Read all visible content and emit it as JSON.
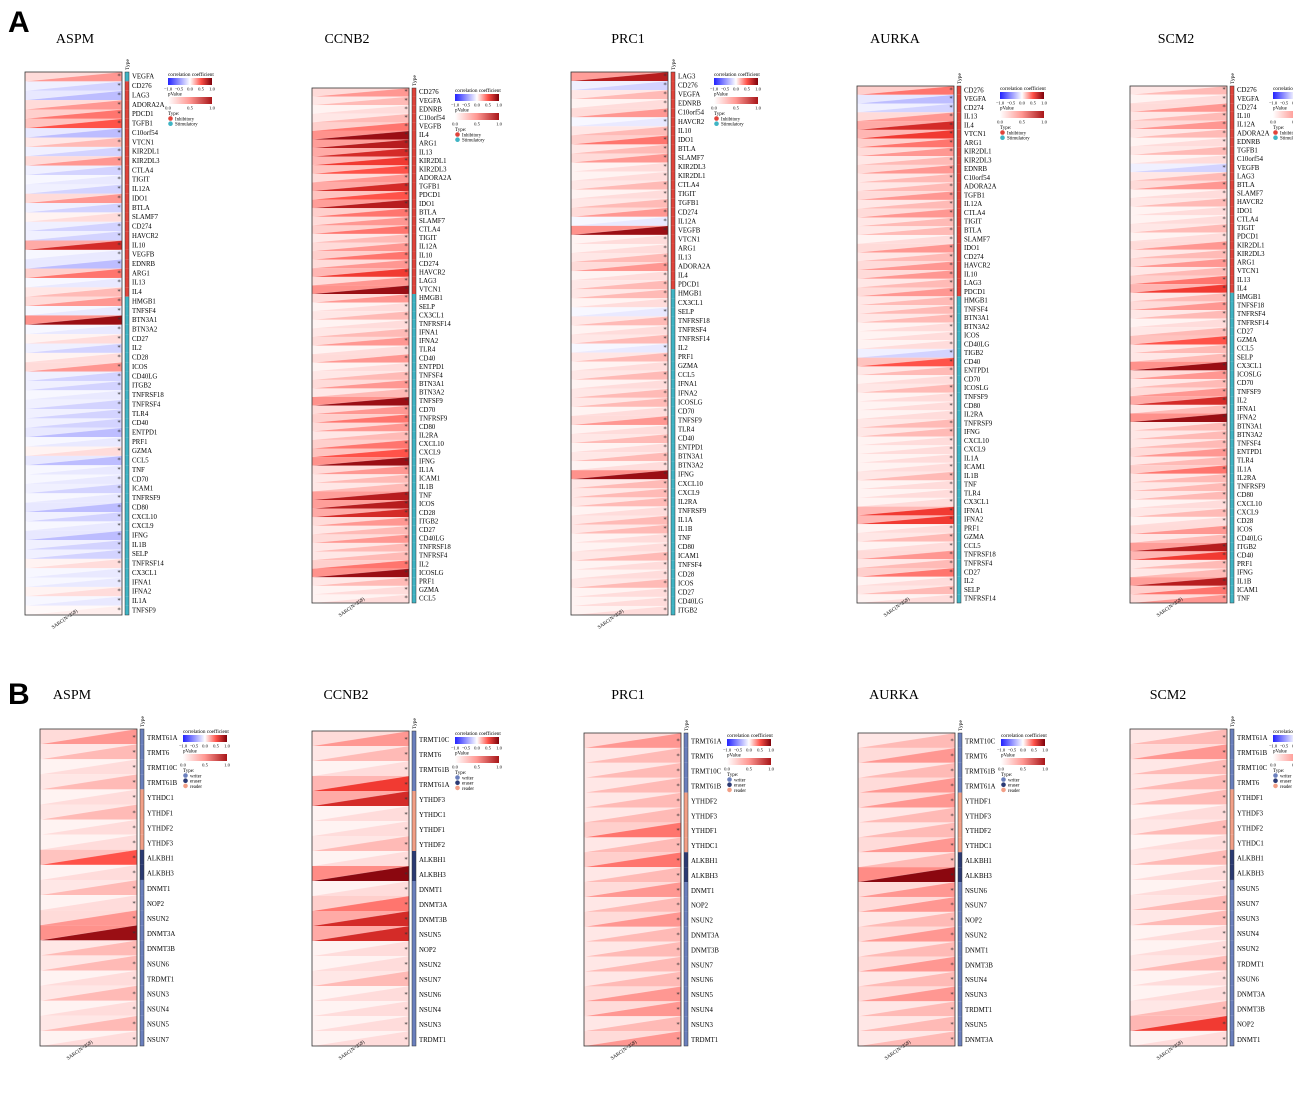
{
  "figure": {
    "label_a": "A",
    "label_b": "B"
  },
  "legend": {
    "corr_title": "correlation coefficient",
    "corr_ticks": [
      "−1.0",
      "−0.5",
      "0.0",
      "0.5",
      "1.0"
    ],
    "p_title": "pValue",
    "p_ticks": [
      "0.0",
      "0.5",
      "1.0"
    ],
    "type_title": "Type:",
    "types_a": [
      "Inhibitory",
      "Stimulatory"
    ],
    "types_b": [
      "writer",
      "eraser",
      "reader"
    ],
    "type_colors_a": {
      "Inhibitory": "#e0433a",
      "Stimulatory": "#3fb4c4"
    },
    "type_colors_b": {
      "writer": "#6a7fbd",
      "eraser": "#2b3a73",
      "reader": "#f29f86"
    }
  },
  "sample_label": "SARC(N=258)",
  "type_header": "Type",
  "chart_data": [
    {
      "type": "heatmap",
      "title": "ASPM",
      "section": "A",
      "genes": [
        "VEGFA",
        "CD276",
        "LAG3",
        "ADORA2A",
        "PDCD1",
        "TGFB1",
        "C10orf54",
        "VTCN1",
        "KIR2DL1",
        "KIR2DL3",
        "CTLA4",
        "TIGIT",
        "IL12A",
        "IDO1",
        "BTLA",
        "SLAMF7",
        "CD274",
        "HAVCR2",
        "IL10",
        "VEGFB",
        "EDNRB",
        "ARG1",
        "IL13",
        "IL4",
        "HMGB1",
        "TNFSF4",
        "BTN3A1",
        "BTN3A2",
        "CD27",
        "IL2",
        "CD28",
        "ICOS",
        "CD40LG",
        "ITGB2",
        "TNFRSF18",
        "TNFRSF4",
        "TLR4",
        "CD40",
        "ENTPD1",
        "PRF1",
        "GZMA",
        "CCL5",
        "TNF",
        "CD70",
        "ICAM1",
        "TNFRSF9",
        "CD80",
        "CXCL10",
        "CXCL9",
        "IFNG",
        "IL1B",
        "SELP",
        "TNFRSF14",
        "CX3CL1",
        "IFNA1",
        "IFNA2",
        "IL1A",
        "TNFSF9"
      ],
      "types": [
        "S",
        "I",
        "I",
        "I",
        "I",
        "I",
        "I",
        "I",
        "I",
        "I",
        "I",
        "I",
        "I",
        "I",
        "I",
        "I",
        "I",
        "I",
        "I",
        "I",
        "I",
        "I",
        "I",
        "I",
        "S",
        "S",
        "S",
        "S",
        "S",
        "S",
        "S",
        "S",
        "S",
        "S",
        "S",
        "S",
        "S",
        "S",
        "S",
        "S",
        "S",
        "S",
        "S",
        "S",
        "S",
        "S",
        "S",
        "S",
        "S",
        "S",
        "S",
        "S",
        "S",
        "S",
        "S",
        "S",
        "S",
        "S"
      ],
      "values": [
        0.3,
        -0.2,
        -0.3,
        0.3,
        0.4,
        0.5,
        -0.3,
        0.2,
        -0.2,
        0.3,
        -0.2,
        -0.1,
        -0.2,
        0.3,
        -0.2,
        0.1,
        -0.2,
        -0.2,
        0.7,
        -0.1,
        -0.3,
        0.4,
        -0.1,
        0.2,
        0.3,
        -0.1,
        0.9,
        -0.1,
        0.1,
        -0.2,
        0.1,
        0.3,
        -0.2,
        -0.2,
        -0.1,
        -0.2,
        -0.2,
        -0.2,
        -0.3,
        -0.1,
        0.1,
        -0.3,
        -0.1,
        -0.1,
        -0.2,
        -0.1,
        -0.3,
        -0.2,
        -0.1,
        -0.3,
        -0.2,
        -0.2,
        0.1,
        -0.1,
        -0.1,
        0.1,
        -0.1,
        0.05
      ]
    },
    {
      "type": "heatmap",
      "title": "CCNB2",
      "section": "A",
      "genes": [
        "CD276",
        "VEGFA",
        "EDNRB",
        "C10orf54",
        "VEGFB",
        "IL4",
        "ARG1",
        "IL13",
        "KIR2DL1",
        "KIR2DL3",
        "ADORA2A",
        "TGFB1",
        "PDCD1",
        "IDO1",
        "BTLA",
        "SLAMF7",
        "CTLA4",
        "TIGIT",
        "IL12A",
        "IL10",
        "CD274",
        "HAVCR2",
        "LAG3",
        "VTCN1",
        "HMGB1",
        "SELP",
        "CX3CL1",
        "TNFRSF14",
        "IFNA1",
        "IFNA2",
        "TLR4",
        "CD40",
        "ENTPD1",
        "TNFSF4",
        "BTN3A1",
        "BTN3A2",
        "TNFSF9",
        "CD70",
        "TNFRSF9",
        "CD80",
        "IL2RA",
        "CXCL10",
        "CXCL9",
        "IFNG",
        "IL1A",
        "ICAM1",
        "IL1B",
        "TNF",
        "ICOS",
        "CD28",
        "ITGB2",
        "CD27",
        "CD40LG",
        "TNFRSF18",
        "TNFRSF4",
        "IL2",
        "ICOSLG",
        "PRF1",
        "GZMA",
        "CCL5"
      ],
      "types": [
        "I",
        "I",
        "I",
        "I",
        "I",
        "I",
        "I",
        "I",
        "I",
        "I",
        "I",
        "I",
        "I",
        "I",
        "I",
        "I",
        "I",
        "I",
        "I",
        "I",
        "I",
        "I",
        "I",
        "I",
        "S",
        "S",
        "S",
        "S",
        "S",
        "S",
        "S",
        "S",
        "S",
        "S",
        "S",
        "S",
        "S",
        "S",
        "S",
        "S",
        "S",
        "S",
        "S",
        "S",
        "S",
        "S",
        "S",
        "S",
        "S",
        "S",
        "S",
        "S",
        "S",
        "S",
        "S",
        "S",
        "S",
        "S",
        "S",
        "S"
      ],
      "values": [
        0.3,
        0.2,
        0.1,
        0.2,
        0.4,
        0.9,
        0.8,
        0.7,
        0.6,
        0.5,
        0.3,
        0.7,
        0.5,
        0.8,
        0.4,
        0.3,
        0.4,
        0.2,
        0.3,
        0.4,
        0.3,
        0.6,
        0.3,
        0.9,
        0.3,
        0.1,
        0.2,
        0.1,
        0.2,
        0.3,
        0.1,
        0.3,
        0.1,
        0.2,
        0.3,
        0.2,
        0.9,
        0.3,
        0.4,
        0.3,
        0.2,
        0.4,
        0.5,
        0.9,
        0.3,
        0.2,
        0.2,
        0.8,
        0.8,
        0.7,
        0.3,
        0.2,
        0.3,
        0.2,
        0.2,
        0.4,
        0.9,
        0.2,
        0.1,
        0.1
      ]
    },
    {
      "type": "heatmap",
      "title": "PRC1",
      "section": "A",
      "genes": [
        "LAG3",
        "CD276",
        "VEGFA",
        "EDNRB",
        "C10orf54",
        "HAVCR2",
        "IL10",
        "IDO1",
        "BTLA",
        "SLAMF7",
        "KIR2DL3",
        "KIR2DL1",
        "CTLA4",
        "TIGIT",
        "TGFB1",
        "CD274",
        "IL12A",
        "VEGFB",
        "VTCN1",
        "ARG1",
        "IL13",
        "ADORA2A",
        "IL4",
        "PDCD1",
        "HMGB1",
        "CX3CL1",
        "SELP",
        "TNFRSF18",
        "TNFRSF4",
        "TNFRSF14",
        "IL2",
        "PRF1",
        "GZMA",
        "CCL5",
        "IFNA1",
        "IFNA2",
        "ICOSLG",
        "CD70",
        "TNFSF9",
        "TLR4",
        "CD40",
        "ENTPD1",
        "BTN3A1",
        "BTN3A2",
        "IFNG",
        "CXCL10",
        "CXCL9",
        "IL2RA",
        "TNFRSF9",
        "IL1A",
        "IL1B",
        "TNF",
        "CD80",
        "ICAM1",
        "TNFSF4",
        "CD28",
        "ICOS",
        "CD27",
        "CD40LG",
        "ITGB2"
      ],
      "types": [
        "I",
        "I",
        "I",
        "I",
        "I",
        "I",
        "I",
        "I",
        "I",
        "I",
        "I",
        "I",
        "I",
        "I",
        "I",
        "I",
        "I",
        "I",
        "I",
        "I",
        "I",
        "I",
        "I",
        "I",
        "S",
        "S",
        "S",
        "S",
        "S",
        "S",
        "S",
        "S",
        "S",
        "S",
        "S",
        "S",
        "S",
        "S",
        "S",
        "S",
        "S",
        "S",
        "S",
        "S",
        "S",
        "S",
        "S",
        "S",
        "S",
        "S",
        "S",
        "S",
        "S",
        "S",
        "S",
        "S",
        "S",
        "S",
        "S",
        "S"
      ],
      "values": [
        0.8,
        -0.2,
        0.2,
        0.1,
        0.3,
        -0.1,
        0.2,
        0.4,
        0.2,
        0.3,
        0.1,
        0.1,
        0.2,
        0.1,
        0.2,
        0.3,
        -0.1,
        0.9,
        0.1,
        0.1,
        0.2,
        0.3,
        0.1,
        0.2,
        0.2,
        0.1,
        -0.1,
        0.2,
        0.1,
        0.2,
        -0.1,
        0.2,
        0.1,
        0.2,
        0.1,
        0.2,
        0.2,
        0.1,
        0.3,
        0.1,
        0.2,
        0.1,
        0.2,
        0.1,
        0.9,
        0.2,
        0.2,
        0.2,
        0.1,
        0.2,
        0.2,
        0.1,
        0.1,
        0.2,
        0.1,
        0.1,
        0.2,
        0.1,
        0.1,
        0.1
      ]
    },
    {
      "type": "heatmap",
      "title": "AURKA",
      "section": "A",
      "genes": [
        "CD276",
        "VEGFA",
        "CD274",
        "IL13",
        "IL4",
        "VTCN1",
        "ARG1",
        "KIR2DL1",
        "KIR2DL3",
        "EDNRB",
        "C10orf54",
        "ADORA2A",
        "TGFB1",
        "IL12A",
        "CTLA4",
        "TIGIT",
        "BTLA",
        "SLAMF7",
        "IDO1",
        "CD274",
        "HAVCR2",
        "IL10",
        "LAG3",
        "PDCD1",
        "HMGB1",
        "TNFSF4",
        "BTN3A1",
        "BTN3A2",
        "ICOS",
        "CD40LG",
        "TIGB2",
        "CD40",
        "ENTPD1",
        "CD70",
        "ICOSLG",
        "TNFSF9",
        "CD80",
        "IL2RA",
        "TNFRSF9",
        "IFNG",
        "CXCL10",
        "CXCL9",
        "IL1A",
        "ICAM1",
        "IL1B",
        "TNF",
        "TLR4",
        "CX3CL1",
        "IFNA1",
        "IFNA2",
        "PRF1",
        "GZMA",
        "CCL5",
        "TNFRSF18",
        "TNFRSF4",
        "CD27",
        "IL2",
        "SELP",
        "TNFRSF14"
      ],
      "types": [
        "I",
        "I",
        "I",
        "I",
        "I",
        "I",
        "I",
        "I",
        "I",
        "I",
        "I",
        "I",
        "I",
        "I",
        "I",
        "I",
        "I",
        "I",
        "I",
        "I",
        "I",
        "I",
        "I",
        "I",
        "S",
        "S",
        "S",
        "S",
        "S",
        "S",
        "S",
        "S",
        "S",
        "S",
        "S",
        "S",
        "S",
        "S",
        "S",
        "S",
        "S",
        "S",
        "S",
        "S",
        "S",
        "S",
        "S",
        "S",
        "S",
        "S",
        "S",
        "S",
        "S",
        "S",
        "S",
        "S",
        "S",
        "S",
        "S"
      ],
      "values": [
        0.4,
        -0.3,
        -0.2,
        0.3,
        0.7,
        0.6,
        0.4,
        0.3,
        0.2,
        0.3,
        0.2,
        0.2,
        0.3,
        0.2,
        0.3,
        0.2,
        0.2,
        0.1,
        0.3,
        0.2,
        0.3,
        0.3,
        0.2,
        0.3,
        0.2,
        0.2,
        0.2,
        0.1,
        0.1,
        0.1,
        -0.2,
        0.5,
        0.2,
        0.1,
        0.2,
        0.1,
        0.1,
        0.1,
        0.2,
        0.2,
        0.1,
        0.1,
        0.1,
        0.1,
        0.2,
        0.1,
        0.1,
        0.1,
        0.6,
        0.6,
        0.1,
        0.2,
        0.1,
        0.3,
        0.2,
        0.4,
        0.1,
        0.2,
        0.1
      ]
    },
    {
      "type": "heatmap",
      "title": "SCM2",
      "section": "A",
      "genes": [
        "CD276",
        "VEGFA",
        "CD274",
        "IL10",
        "IL12A",
        "ADORA2A",
        "EDNRB",
        "TGFB1",
        "C10orf54",
        "VEGFB",
        "LAG3",
        "BTLA",
        "SLAMF7",
        "HAVCR2",
        "IDO1",
        "CTLA4",
        "TIGIT",
        "PDCD1",
        "KIR2DL1",
        "KIR2DL3",
        "ARG1",
        "VTCN1",
        "IL13",
        "IL4",
        "HMGB1",
        "TNFSF18",
        "TNFRSF4",
        "TNFRSF14",
        "CD27",
        "GZMA",
        "CCL5",
        "SELP",
        "CX3CL1",
        "ICOSLG",
        "CD70",
        "TNFSF9",
        "IL2",
        "IFNA1",
        "IFNA2",
        "BTN3A1",
        "BTN3A2",
        "TNFSF4",
        "ENTPD1",
        "TLR4",
        "IL1A",
        "IL2RA",
        "TNFRSF9",
        "CD80",
        "CXCL10",
        "CXCL9",
        "CD28",
        "ICOS",
        "CD40LG",
        "ITGB2",
        "CD40",
        "PRF1",
        "IFNG",
        "IL1B",
        "ICAM1",
        "TNF"
      ],
      "types": [
        "I",
        "I",
        "I",
        "I",
        "I",
        "I",
        "I",
        "I",
        "I",
        "I",
        "I",
        "I",
        "I",
        "I",
        "I",
        "I",
        "I",
        "I",
        "I",
        "I",
        "I",
        "I",
        "I",
        "I",
        "S",
        "S",
        "S",
        "S",
        "S",
        "S",
        "S",
        "S",
        "S",
        "S",
        "S",
        "S",
        "S",
        "S",
        "S",
        "S",
        "S",
        "S",
        "S",
        "S",
        "S",
        "S",
        "S",
        "S",
        "S",
        "S",
        "S",
        "S",
        "S",
        "S",
        "S",
        "S",
        "S",
        "S",
        "S",
        "S"
      ],
      "values": [
        0.2,
        0.1,
        0.3,
        0.2,
        0.3,
        0.2,
        0.1,
        0.2,
        0.1,
        -0.2,
        0.2,
        0.3,
        0.1,
        0.2,
        0.1,
        0.1,
        0.2,
        0.1,
        0.3,
        0.2,
        0.3,
        0.2,
        0.4,
        0.6,
        0.2,
        0.3,
        0.2,
        0.1,
        0.2,
        0.5,
        0.2,
        0.2,
        0.9,
        0.3,
        0.2,
        0.3,
        0.7,
        0.2,
        0.9,
        0.2,
        0.2,
        0.2,
        0.3,
        0.2,
        0.4,
        0.2,
        0.2,
        0.2,
        0.1,
        0.2,
        0.1,
        0.3,
        0.2,
        0.8,
        0.6,
        0.2,
        0.2,
        0.8,
        0.4,
        0.3
      ]
    },
    {
      "type": "heatmap",
      "title": "ASPM",
      "section": "B",
      "genes": [
        "TRMT61A",
        "TRMT6",
        "TRMT10C",
        "TRMT61B",
        "YTHDC1",
        "YTHDF1",
        "YTHDF2",
        "YTHDF3",
        "ALKBH1",
        "ALKBH3",
        "DNMT1",
        "NOP2",
        "NSUN2",
        "DNMT3A",
        "DNMT3B",
        "NSUN6",
        "TRDMT1",
        "NSUN3",
        "NSUN4",
        "NSUN5",
        "NSUN7"
      ],
      "types": [
        "w",
        "w",
        "w",
        "w",
        "r",
        "r",
        "r",
        "r",
        "e",
        "e",
        "w",
        "w",
        "w",
        "w",
        "w",
        "w",
        "w",
        "w",
        "w",
        "w",
        "w"
      ],
      "values": [
        0.3,
        0.2,
        0.1,
        0.2,
        0.1,
        0.2,
        0.1,
        0.1,
        0.5,
        0.1,
        0.2,
        0.1,
        0.3,
        0.9,
        0.2,
        0.2,
        0.1,
        0.2,
        0.1,
        0.2,
        0.1
      ]
    },
    {
      "type": "heatmap",
      "title": "CCNB2",
      "section": "B",
      "genes": [
        "TRMT10C",
        "TRMT6",
        "TRMT61B",
        "TRMT61A",
        "YTHDF3",
        "YTHDC1",
        "YTHDF1",
        "YTHDF2",
        "ALKBH1",
        "ALKBH3",
        "DNMT1",
        "DNMT3A",
        "DNMT3B",
        "NSUN5",
        "NOP2",
        "NSUN2",
        "NSUN7",
        "NSUN6",
        "NSUN4",
        "NSUN3",
        "TRDMT1"
      ],
      "types": [
        "w",
        "w",
        "w",
        "w",
        "r",
        "r",
        "r",
        "r",
        "e",
        "e",
        "w",
        "w",
        "w",
        "w",
        "w",
        "w",
        "w",
        "w",
        "w",
        "w",
        "w"
      ],
      "values": [
        0.3,
        0.2,
        0.1,
        0.6,
        0.7,
        0.1,
        0.1,
        0.2,
        0.1,
        0.95,
        0.1,
        0.4,
        0.7,
        0.7,
        0.1,
        0.1,
        0.2,
        0.1,
        0.1,
        0.1,
        0.1
      ]
    },
    {
      "type": "heatmap",
      "title": "PRC1",
      "section": "B",
      "genes": [
        "TRMT61A",
        "TRMT6",
        "TRMT10C",
        "TRMT61B",
        "YTHDF2",
        "YTHDF3",
        "YTHDF1",
        "YTHDC1",
        "ALKBH1",
        "ALKBH3",
        "DNMT1",
        "NOP2",
        "NSUN2",
        "DNMT3A",
        "DNMT3B",
        "NSUN7",
        "NSUN6",
        "NSUN5",
        "NSUN4",
        "NSUN3",
        "TRDMT1"
      ],
      "types": [
        "w",
        "w",
        "w",
        "w",
        "r",
        "r",
        "r",
        "r",
        "e",
        "e",
        "w",
        "w",
        "w",
        "w",
        "w",
        "w",
        "w",
        "w",
        "w",
        "w",
        "w"
      ],
      "values": [
        0.3,
        0.2,
        0.2,
        0.2,
        0.2,
        0.2,
        0.4,
        0.2,
        0.4,
        0.2,
        0.3,
        0.2,
        0.3,
        0.2,
        0.2,
        0.2,
        0.2,
        0.3,
        0.3,
        0.2,
        0.3
      ]
    },
    {
      "type": "heatmap",
      "title": "AURKA",
      "section": "B",
      "genes": [
        "TRMT10C",
        "TRMT6",
        "TRMT61B",
        "TRMT61A",
        "YTHDF1",
        "YTHDF3",
        "YTHDF2",
        "YTHDC1",
        "ALKBH1",
        "ALKBH3",
        "NSUN6",
        "NSUN7",
        "NOP2",
        "NSUN2",
        "DNMT1",
        "DNMT3B",
        "NSUN4",
        "NSUN3",
        "TRDMT1",
        "NSUN5",
        "DNMT3A"
      ],
      "types": [
        "w",
        "w",
        "w",
        "w",
        "r",
        "r",
        "r",
        "r",
        "e",
        "e",
        "w",
        "w",
        "w",
        "w",
        "w",
        "w",
        "w",
        "w",
        "w",
        "w",
        "w"
      ],
      "values": [
        0.2,
        0.3,
        0.2,
        0.3,
        0.3,
        0.2,
        0.2,
        0.3,
        0.2,
        0.95,
        0.3,
        0.3,
        0.2,
        0.3,
        0.2,
        0.3,
        0.2,
        0.3,
        0.2,
        0.2,
        0.2
      ]
    },
    {
      "type": "heatmap",
      "title": "SCM2",
      "section": "B",
      "genes": [
        "TRMT61A",
        "TRMT61B",
        "TRMT10C",
        "TRMT6",
        "YTHDF1",
        "YTHDF3",
        "YTHDF2",
        "YTHDC1",
        "ALKBH1",
        "ALKBH3",
        "NSUN5",
        "NSUN7",
        "NSUN3",
        "NSUN4",
        "NSUN2",
        "TRDMT1",
        "NSUN6",
        "DNMT3A",
        "DNMT3B",
        "NOP2",
        "DNMT1"
      ],
      "types": [
        "w",
        "w",
        "w",
        "w",
        "r",
        "r",
        "r",
        "r",
        "e",
        "e",
        "w",
        "w",
        "w",
        "w",
        "w",
        "w",
        "w",
        "w",
        "w",
        "w",
        "w"
      ],
      "values": [
        0.2,
        0.3,
        0.2,
        0.2,
        0.2,
        0.1,
        0.2,
        0.1,
        0.2,
        0.1,
        0.1,
        0.2,
        0.2,
        0.1,
        0.1,
        0.2,
        0.1,
        0.1,
        0.2,
        0.6,
        0.1
      ]
    }
  ]
}
